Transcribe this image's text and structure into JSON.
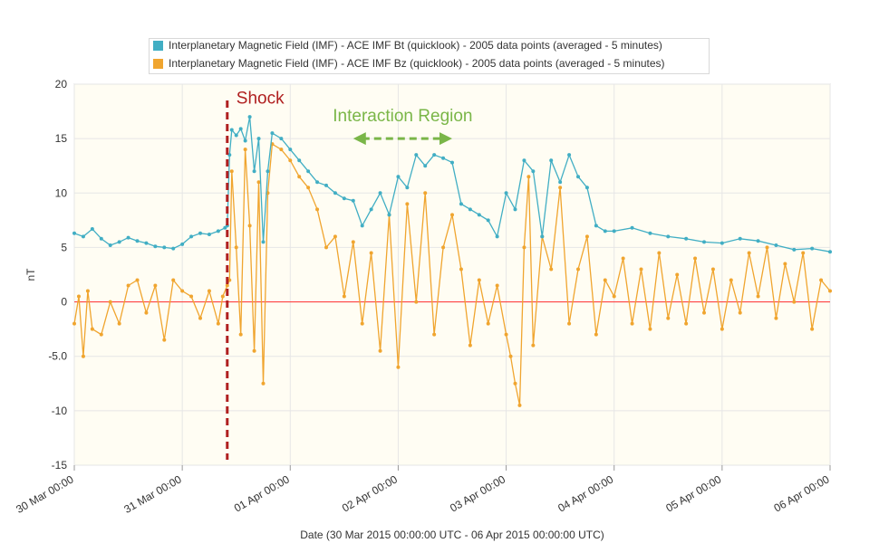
{
  "chart_data": {
    "type": "line",
    "title": "",
    "xlabel": "Date (30 Mar 2015 00:00:00 UTC - 06 Apr 2015 00:00:00 UTC)",
    "ylabel": "nT",
    "x_range": [
      "2015-03-30 00:00",
      "2015-04-06 00:00"
    ],
    "ylim": [
      -15,
      20
    ],
    "y_ticks": [
      20,
      15,
      10,
      5,
      0,
      -5,
      -10,
      -15
    ],
    "y_tick_labels": [
      "20",
      "15",
      "10",
      "5",
      "0",
      "-5.0",
      "-10",
      "-15"
    ],
    "x_tick_labels": [
      "30 Mar 00:00",
      "31 Mar 00:00",
      "01 Apr 00:00",
      "02 Apr 00:00",
      "03 Apr 00:00",
      "04 Apr 00:00",
      "05 Apr 00:00",
      "06 Apr 00:00"
    ],
    "grid": true,
    "legend_position": "top",
    "background_color": "#fffdf3",
    "zero_line_color": "#ff4444",
    "series": [
      {
        "name": "Interplanetary Magnetic Field (IMF) - ACE IMF Bt (quicklook) - 2005 data points (averaged - 5 minutes)",
        "color": "#41aec4",
        "points": [
          [
            "2015-03-30 00:00",
            6.3
          ],
          [
            "2015-03-30 02:00",
            6.0
          ],
          [
            "2015-03-30 04:00",
            6.7
          ],
          [
            "2015-03-30 06:00",
            5.8
          ],
          [
            "2015-03-30 08:00",
            5.2
          ],
          [
            "2015-03-30 10:00",
            5.5
          ],
          [
            "2015-03-30 12:00",
            5.9
          ],
          [
            "2015-03-30 14:00",
            5.6
          ],
          [
            "2015-03-30 16:00",
            5.4
          ],
          [
            "2015-03-30 18:00",
            5.1
          ],
          [
            "2015-03-30 20:00",
            5.0
          ],
          [
            "2015-03-30 22:00",
            4.9
          ],
          [
            "2015-03-31 00:00",
            5.3
          ],
          [
            "2015-03-31 02:00",
            6.0
          ],
          [
            "2015-03-31 04:00",
            6.3
          ],
          [
            "2015-03-31 06:00",
            6.2
          ],
          [
            "2015-03-31 08:00",
            6.5
          ],
          [
            "2015-03-31 09:30",
            6.8
          ],
          [
            "2015-03-31 10:00",
            7.0
          ],
          [
            "2015-03-31 10:30",
            13.5
          ],
          [
            "2015-03-31 11:00",
            15.8
          ],
          [
            "2015-03-31 12:00",
            15.3
          ],
          [
            "2015-03-31 13:00",
            15.9
          ],
          [
            "2015-03-31 14:00",
            14.8
          ],
          [
            "2015-03-31 15:00",
            17.0
          ],
          [
            "2015-03-31 16:00",
            12.0
          ],
          [
            "2015-03-31 17:00",
            15.0
          ],
          [
            "2015-03-31 18:00",
            5.5
          ],
          [
            "2015-03-31 19:00",
            12.0
          ],
          [
            "2015-03-31 20:00",
            15.5
          ],
          [
            "2015-03-31 22:00",
            15.0
          ],
          [
            "2015-04-01 00:00",
            14.0
          ],
          [
            "2015-04-01 02:00",
            13.0
          ],
          [
            "2015-04-01 04:00",
            12.0
          ],
          [
            "2015-04-01 06:00",
            11.0
          ],
          [
            "2015-04-01 08:00",
            10.7
          ],
          [
            "2015-04-01 10:00",
            10.0
          ],
          [
            "2015-04-01 12:00",
            9.5
          ],
          [
            "2015-04-01 14:00",
            9.3
          ],
          [
            "2015-04-01 16:00",
            7.0
          ],
          [
            "2015-04-01 18:00",
            8.5
          ],
          [
            "2015-04-01 20:00",
            10.0
          ],
          [
            "2015-04-01 22:00",
            8.0
          ],
          [
            "2015-04-02 00:00",
            11.5
          ],
          [
            "2015-04-02 02:00",
            10.5
          ],
          [
            "2015-04-02 04:00",
            13.5
          ],
          [
            "2015-04-02 06:00",
            12.5
          ],
          [
            "2015-04-02 08:00",
            13.5
          ],
          [
            "2015-04-02 10:00",
            13.2
          ],
          [
            "2015-04-02 12:00",
            12.8
          ],
          [
            "2015-04-02 14:00",
            9.0
          ],
          [
            "2015-04-02 16:00",
            8.5
          ],
          [
            "2015-04-02 18:00",
            8.0
          ],
          [
            "2015-04-02 20:00",
            7.5
          ],
          [
            "2015-04-02 22:00",
            6.0
          ],
          [
            "2015-04-03 00:00",
            10.0
          ],
          [
            "2015-04-03 02:00",
            8.5
          ],
          [
            "2015-04-03 04:00",
            13.0
          ],
          [
            "2015-04-03 06:00",
            12.0
          ],
          [
            "2015-04-03 08:00",
            6.0
          ],
          [
            "2015-04-03 10:00",
            13.0
          ],
          [
            "2015-04-03 12:00",
            11.0
          ],
          [
            "2015-04-03 14:00",
            13.5
          ],
          [
            "2015-04-03 16:00",
            11.5
          ],
          [
            "2015-04-03 18:00",
            10.5
          ],
          [
            "2015-04-03 20:00",
            7.0
          ],
          [
            "2015-04-03 22:00",
            6.5
          ],
          [
            "2015-04-04 00:00",
            6.5
          ],
          [
            "2015-04-04 04:00",
            6.8
          ],
          [
            "2015-04-04 08:00",
            6.3
          ],
          [
            "2015-04-04 12:00",
            6.0
          ],
          [
            "2015-04-04 16:00",
            5.8
          ],
          [
            "2015-04-04 20:00",
            5.5
          ],
          [
            "2015-04-05 00:00",
            5.4
          ],
          [
            "2015-04-05 04:00",
            5.8
          ],
          [
            "2015-04-05 08:00",
            5.6
          ],
          [
            "2015-04-05 12:00",
            5.2
          ],
          [
            "2015-04-05 16:00",
            4.8
          ],
          [
            "2015-04-05 20:00",
            4.9
          ],
          [
            "2015-04-06 00:00",
            4.6
          ]
        ]
      },
      {
        "name": "Interplanetary Magnetic Field (IMF) - ACE IMF Bz (quicklook) - 2005 data points (averaged - 5 minutes)",
        "color": "#f0a52f",
        "points": [
          [
            "2015-03-30 00:00",
            -2.0
          ],
          [
            "2015-03-30 01:00",
            0.5
          ],
          [
            "2015-03-30 02:00",
            -5.0
          ],
          [
            "2015-03-30 03:00",
            1.0
          ],
          [
            "2015-03-30 04:00",
            -2.5
          ],
          [
            "2015-03-30 06:00",
            -3.0
          ],
          [
            "2015-03-30 08:00",
            0.0
          ],
          [
            "2015-03-30 10:00",
            -2.0
          ],
          [
            "2015-03-30 12:00",
            1.5
          ],
          [
            "2015-03-30 14:00",
            2.0
          ],
          [
            "2015-03-30 16:00",
            -1.0
          ],
          [
            "2015-03-30 18:00",
            1.5
          ],
          [
            "2015-03-30 20:00",
            -3.5
          ],
          [
            "2015-03-30 22:00",
            2.0
          ],
          [
            "2015-03-31 00:00",
            1.0
          ],
          [
            "2015-03-31 02:00",
            0.5
          ],
          [
            "2015-03-31 04:00",
            -1.5
          ],
          [
            "2015-03-31 06:00",
            1.0
          ],
          [
            "2015-03-31 08:00",
            -2.0
          ],
          [
            "2015-03-31 09:00",
            0.5
          ],
          [
            "2015-03-31 10:00",
            1.5
          ],
          [
            "2015-03-31 10:30",
            2.0
          ],
          [
            "2015-03-31 11:00",
            12.0
          ],
          [
            "2015-03-31 12:00",
            5.0
          ],
          [
            "2015-03-31 13:00",
            -3.0
          ],
          [
            "2015-03-31 14:00",
            14.0
          ],
          [
            "2015-03-31 15:00",
            7.0
          ],
          [
            "2015-03-31 16:00",
            -4.5
          ],
          [
            "2015-03-31 17:00",
            11.0
          ],
          [
            "2015-03-31 18:00",
            -7.5
          ],
          [
            "2015-03-31 19:00",
            10.0
          ],
          [
            "2015-03-31 20:00",
            14.5
          ],
          [
            "2015-03-31 22:00",
            14.0
          ],
          [
            "2015-04-01 00:00",
            13.0
          ],
          [
            "2015-04-01 02:00",
            11.5
          ],
          [
            "2015-04-01 04:00",
            10.5
          ],
          [
            "2015-04-01 06:00",
            8.5
          ],
          [
            "2015-04-01 08:00",
            5.0
          ],
          [
            "2015-04-01 10:00",
            6.0
          ],
          [
            "2015-04-01 12:00",
            0.5
          ],
          [
            "2015-04-01 14:00",
            5.5
          ],
          [
            "2015-04-01 16:00",
            -2.0
          ],
          [
            "2015-04-01 18:00",
            4.5
          ],
          [
            "2015-04-01 20:00",
            -4.5
          ],
          [
            "2015-04-01 22:00",
            8.0
          ],
          [
            "2015-04-02 00:00",
            -6.0
          ],
          [
            "2015-04-02 02:00",
            9.0
          ],
          [
            "2015-04-02 04:00",
            0.0
          ],
          [
            "2015-04-02 06:00",
            10.0
          ],
          [
            "2015-04-02 08:00",
            -3.0
          ],
          [
            "2015-04-02 10:00",
            5.0
          ],
          [
            "2015-04-02 12:00",
            8.0
          ],
          [
            "2015-04-02 14:00",
            3.0
          ],
          [
            "2015-04-02 16:00",
            -4.0
          ],
          [
            "2015-04-02 18:00",
            2.0
          ],
          [
            "2015-04-02 20:00",
            -2.0
          ],
          [
            "2015-04-02 22:00",
            1.5
          ],
          [
            "2015-04-03 00:00",
            -3.0
          ],
          [
            "2015-04-03 01:00",
            -5.0
          ],
          [
            "2015-04-03 02:00",
            -7.5
          ],
          [
            "2015-04-03 03:00",
            -9.5
          ],
          [
            "2015-04-03 04:00",
            5.0
          ],
          [
            "2015-04-03 05:00",
            11.5
          ],
          [
            "2015-04-03 06:00",
            -4.0
          ],
          [
            "2015-04-03 08:00",
            6.0
          ],
          [
            "2015-04-03 10:00",
            3.0
          ],
          [
            "2015-04-03 12:00",
            10.5
          ],
          [
            "2015-04-03 14:00",
            -2.0
          ],
          [
            "2015-04-03 16:00",
            3.0
          ],
          [
            "2015-04-03 18:00",
            6.0
          ],
          [
            "2015-04-03 20:00",
            -3.0
          ],
          [
            "2015-04-03 22:00",
            2.0
          ],
          [
            "2015-04-04 00:00",
            0.5
          ],
          [
            "2015-04-04 02:00",
            4.0
          ],
          [
            "2015-04-04 04:00",
            -2.0
          ],
          [
            "2015-04-04 06:00",
            3.0
          ],
          [
            "2015-04-04 08:00",
            -2.5
          ],
          [
            "2015-04-04 10:00",
            4.5
          ],
          [
            "2015-04-04 12:00",
            -1.5
          ],
          [
            "2015-04-04 14:00",
            2.5
          ],
          [
            "2015-04-04 16:00",
            -2.0
          ],
          [
            "2015-04-04 18:00",
            4.0
          ],
          [
            "2015-04-04 20:00",
            -1.0
          ],
          [
            "2015-04-04 22:00",
            3.0
          ],
          [
            "2015-04-05 00:00",
            -2.5
          ],
          [
            "2015-04-05 02:00",
            2.0
          ],
          [
            "2015-04-05 04:00",
            -1.0
          ],
          [
            "2015-04-05 06:00",
            4.5
          ],
          [
            "2015-04-05 08:00",
            0.5
          ],
          [
            "2015-04-05 10:00",
            5.0
          ],
          [
            "2015-04-05 12:00",
            -1.5
          ],
          [
            "2015-04-05 14:00",
            3.5
          ],
          [
            "2015-04-05 16:00",
            0.0
          ],
          [
            "2015-04-05 18:00",
            4.5
          ],
          [
            "2015-04-05 20:00",
            -2.5
          ],
          [
            "2015-04-05 22:00",
            2.0
          ],
          [
            "2015-04-06 00:00",
            1.0
          ]
        ]
      }
    ],
    "annotations": [
      {
        "text": "Shock",
        "x": "2015-03-31 10:00",
        "color": "#b02020",
        "type": "dashed-vertical"
      },
      {
        "text": "Interaction Region",
        "x_from": "2015-04-01 14:00",
        "x_to": "2015-04-02 12:00",
        "color": "#7ab648",
        "type": "dashed-arrow"
      }
    ]
  }
}
